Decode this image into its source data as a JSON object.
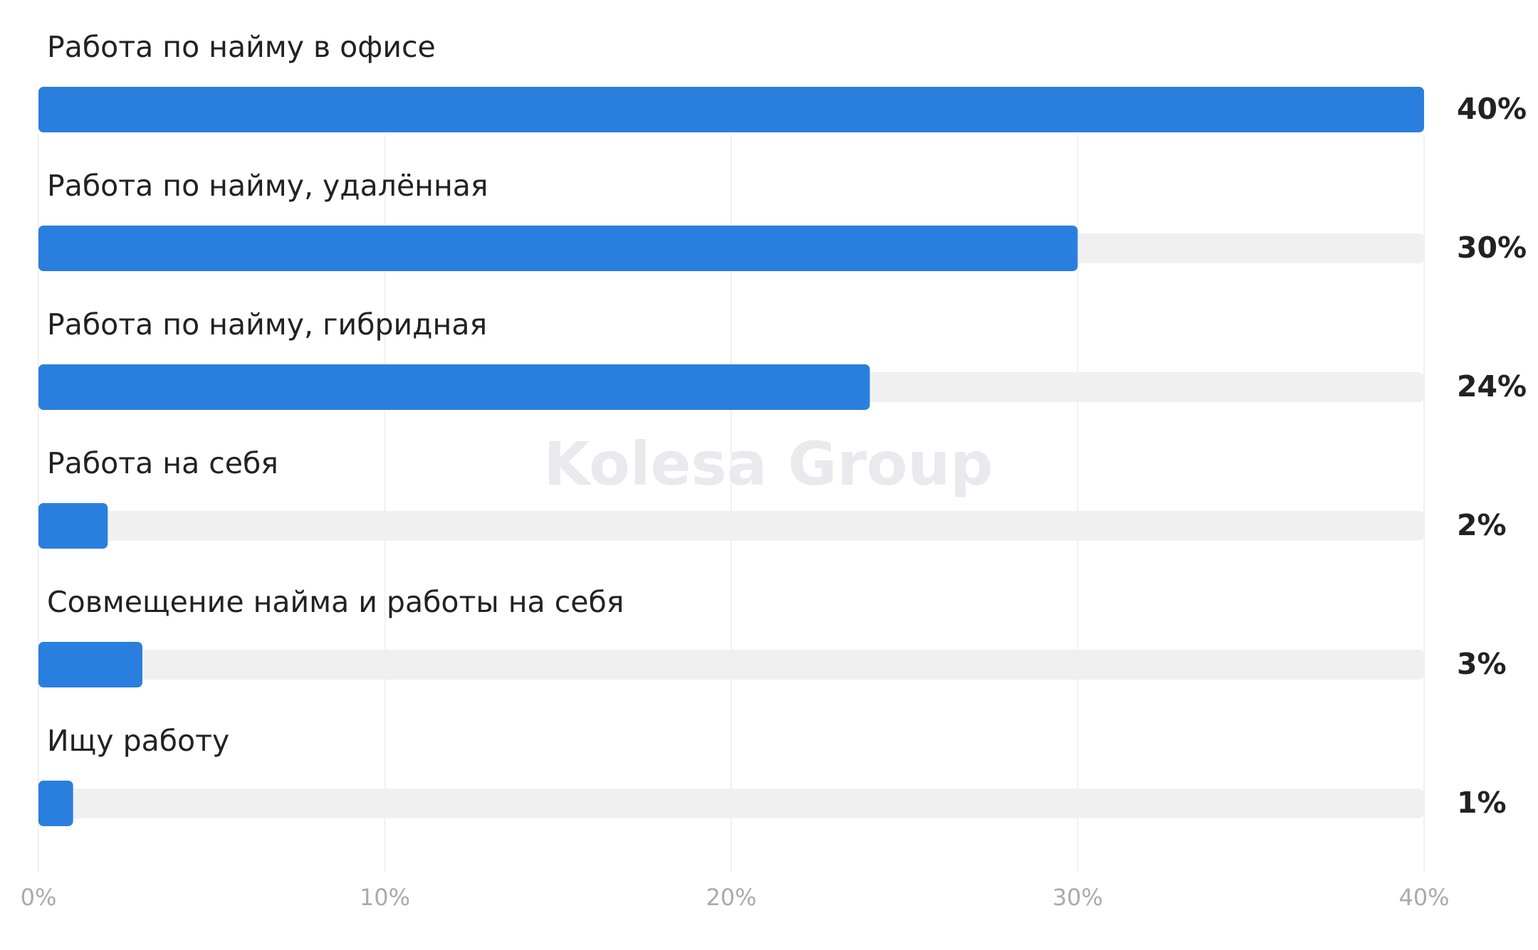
{
  "chart_data": {
    "type": "barh",
    "watermark": "Kolesa Group",
    "categories": [
      "Работа по найму в офисе",
      "Работа по найму, удалённая",
      "Работа по найму, гибридная",
      "Работа на себя",
      "Совмещение найма и работы на себя",
      "Ищу работу"
    ],
    "values": [
      40,
      30,
      24,
      2,
      3,
      1
    ],
    "value_labels": [
      "40%",
      "30%",
      "24%",
      "2%",
      "3%",
      "1%"
    ],
    "color": "#2a7fde",
    "track_color": "#f0f0f0",
    "xlim": [
      0,
      40
    ],
    "xticks": [
      {
        "value": 0,
        "label": "0%"
      },
      {
        "value": 10,
        "label": "10%"
      },
      {
        "value": 20,
        "label": "20%"
      },
      {
        "value": 30,
        "label": "30%"
      },
      {
        "value": 40,
        "label": "40%"
      }
    ],
    "grid": true
  }
}
